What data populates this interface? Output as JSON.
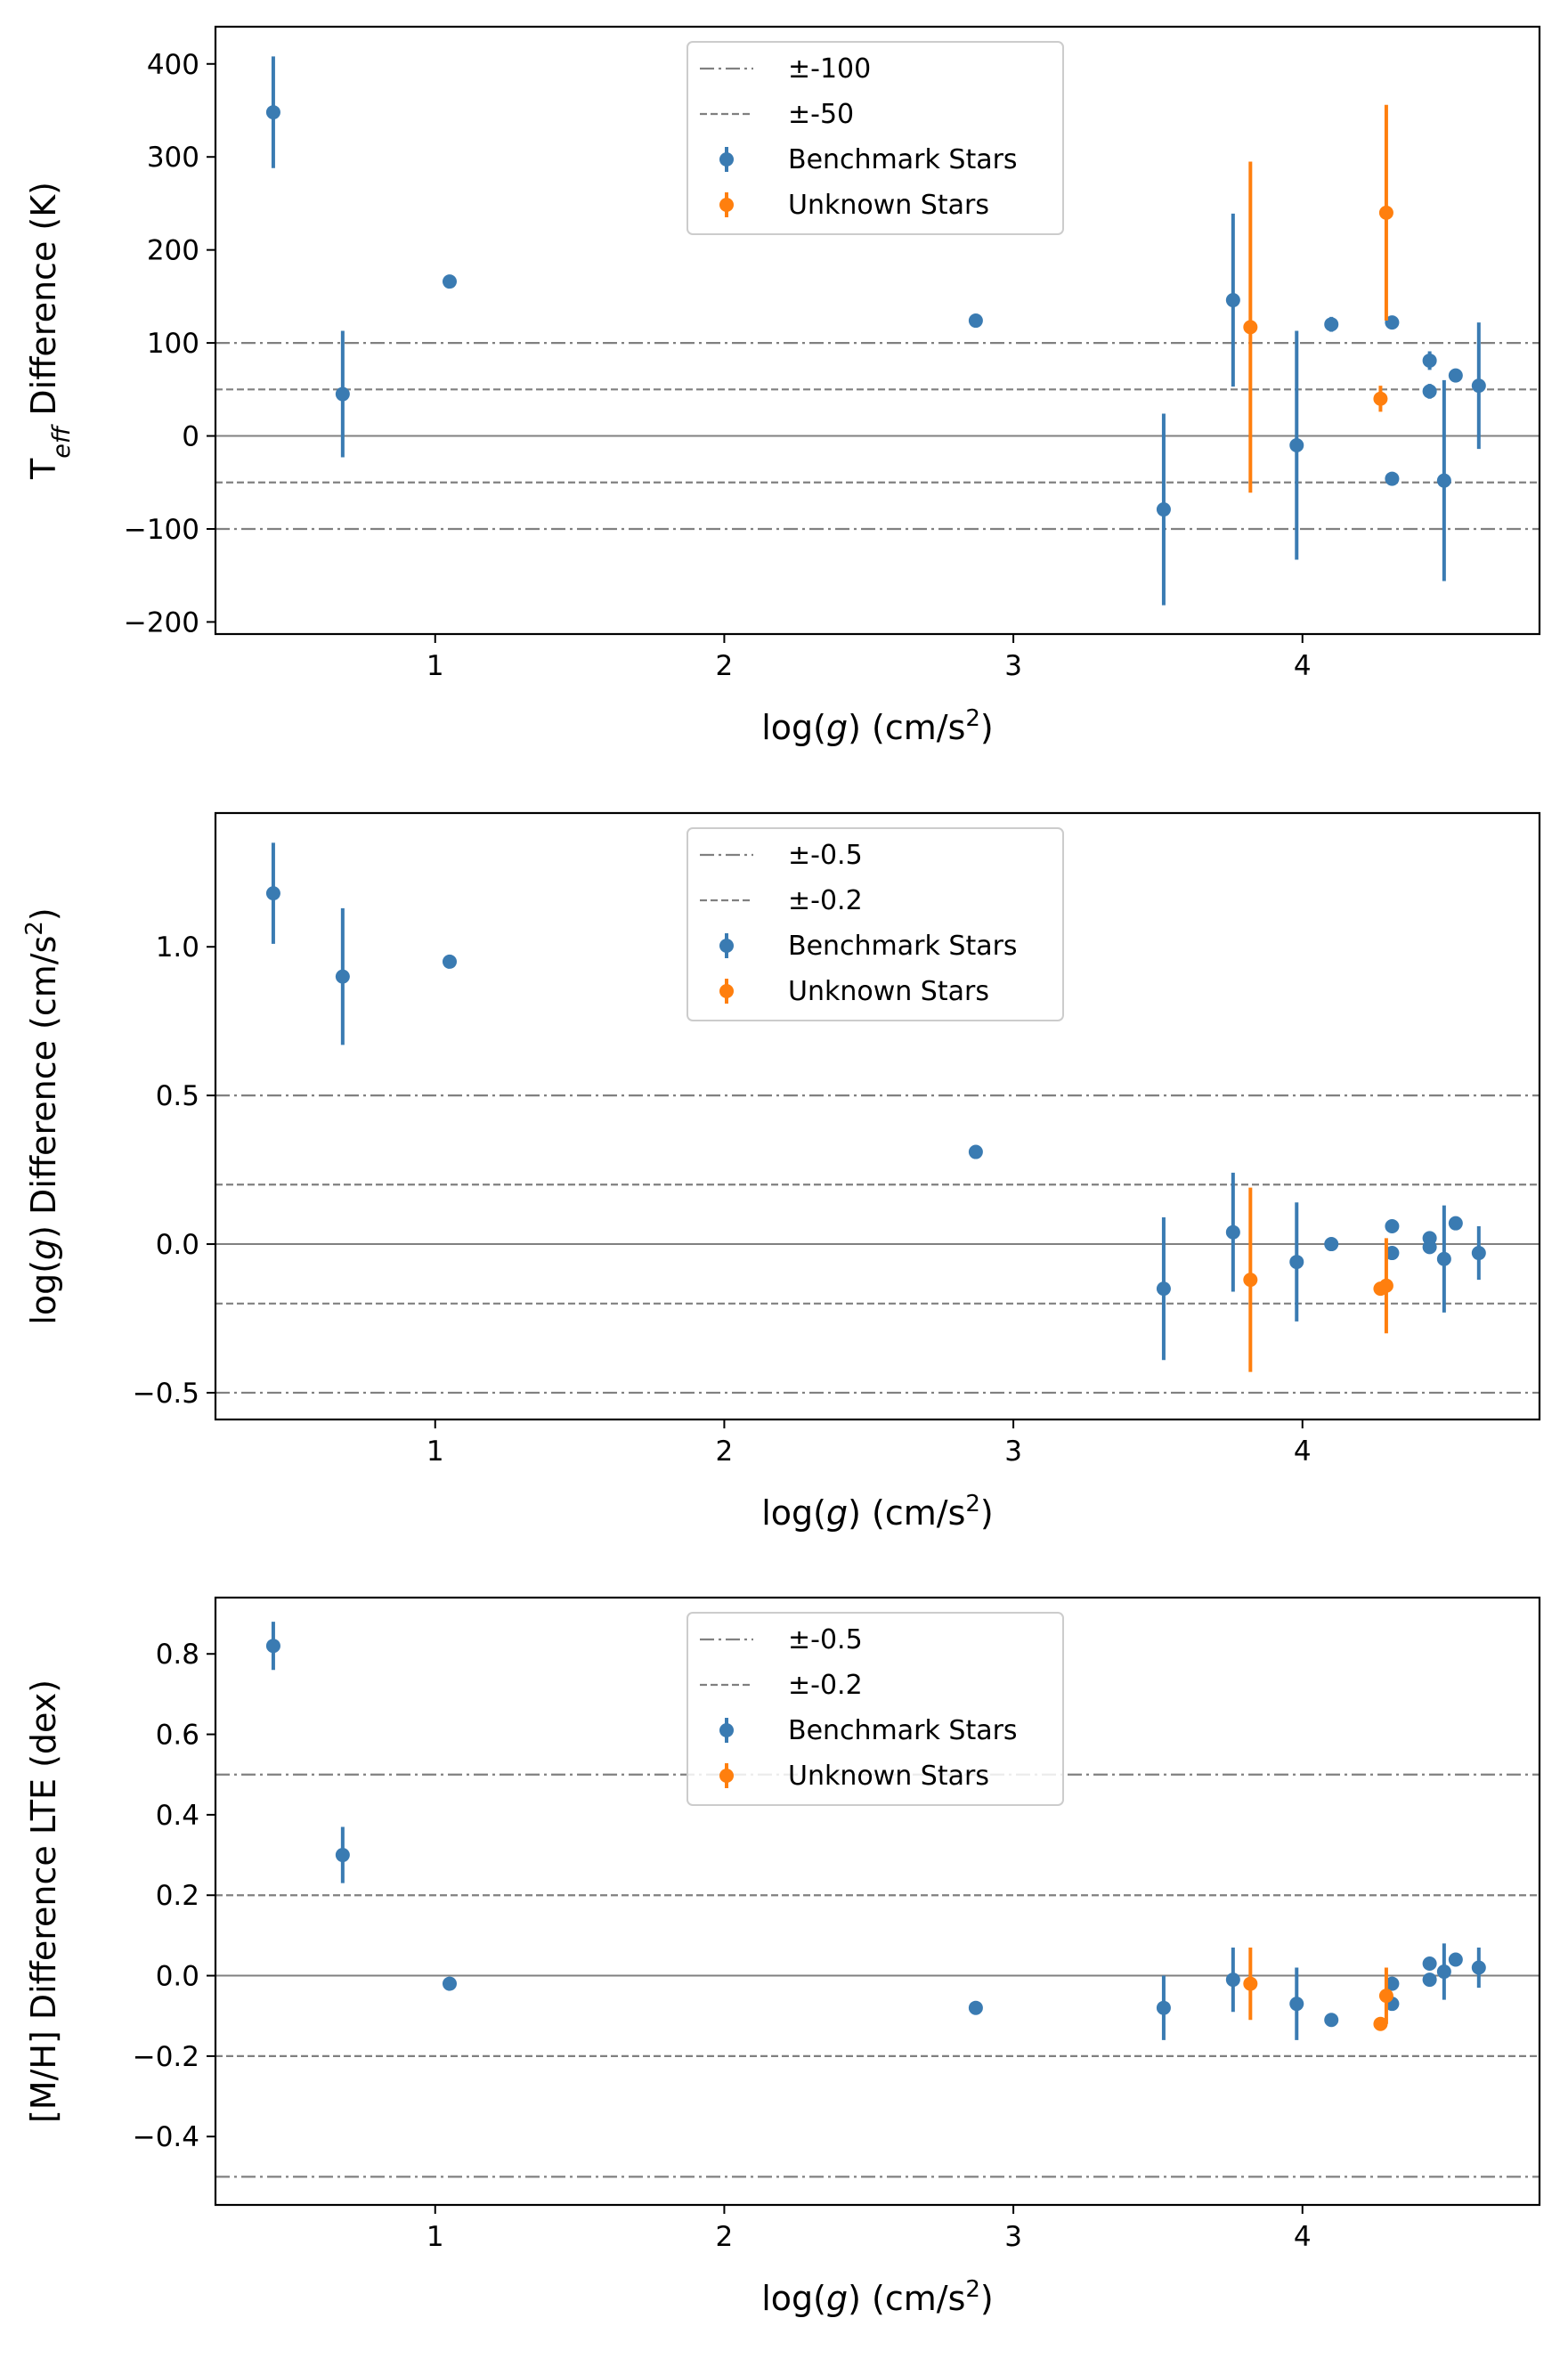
{
  "colors": {
    "benchmark": "#3a7bb2",
    "unknown": "#ff7f0e",
    "reference": "#808080",
    "axes": "#000000"
  },
  "chart_data": [
    {
      "type": "scatter",
      "error_bars": true,
      "xlabel": "log(g) (cm/s²)",
      "xlabel_parts": [
        "log(",
        "g",
        ") (cm/s",
        "2",
        ")"
      ],
      "ylabel": "Teff Difference (K)",
      "ylabel_parts": [
        "T",
        "eff",
        " Difference (K)"
      ],
      "xlim": [
        0.24,
        4.82
      ],
      "ylim": [
        -213,
        440
      ],
      "xticks": [
        1,
        2,
        3,
        4
      ],
      "xtick_labels": [
        "1",
        "2",
        "3",
        "4"
      ],
      "yticks": [
        400,
        300,
        200,
        100,
        0,
        -100,
        -200
      ],
      "ytick_labels": [
        "400",
        "300",
        "200",
        "100",
        "0",
        "−100",
        "−200"
      ],
      "zero_line": true,
      "reference_lines": [
        {
          "label": "±-100",
          "style": "dashdot",
          "values": [
            100,
            -100
          ]
        },
        {
          "label": "±-50",
          "style": "dashed",
          "values": [
            50,
            -50
          ]
        }
      ],
      "legend_position": "upper center",
      "series": [
        {
          "name": "Benchmark Stars",
          "points": [
            {
              "x": 0.44,
              "y": 348,
              "err": 60
            },
            {
              "x": 0.68,
              "y": 45,
              "err": 68
            },
            {
              "x": 1.05,
              "y": 166,
              "err": 0
            },
            {
              "x": 2.87,
              "y": 124,
              "err": 0
            },
            {
              "x": 3.52,
              "y": -79,
              "err": 103
            },
            {
              "x": 3.76,
              "y": 146,
              "err": 93
            },
            {
              "x": 3.98,
              "y": -10,
              "err": 123
            },
            {
              "x": 4.1,
              "y": 120,
              "err": 8
            },
            {
              "x": 4.31,
              "y": 122,
              "err": 0
            },
            {
              "x": 4.31,
              "y": -46,
              "err": 0
            },
            {
              "x": 4.44,
              "y": 81,
              "err": 10
            },
            {
              "x": 4.44,
              "y": 48,
              "err": 8
            },
            {
              "x": 4.49,
              "y": -48,
              "err": 108
            },
            {
              "x": 4.53,
              "y": 65,
              "err": 0
            },
            {
              "x": 4.61,
              "y": 54,
              "err": 68
            }
          ]
        },
        {
          "name": "Unknown Stars",
          "points": [
            {
              "x": 3.82,
              "y": 117,
              "err": 178
            },
            {
              "x": 4.27,
              "y": 40,
              "err": 14
            },
            {
              "x": 4.29,
              "y": 240,
              "err": 116
            }
          ]
        }
      ]
    },
    {
      "type": "scatter",
      "error_bars": true,
      "xlabel": "log(g) (cm/s²)",
      "xlabel_parts": [
        "log(",
        "g",
        ") (cm/s",
        "2",
        ")"
      ],
      "ylabel": "log(g) Difference (cm/s²)",
      "ylabel_parts": [
        "log(",
        "g",
        ") Difference (cm/s",
        "2",
        ")"
      ],
      "xlim": [
        0.24,
        4.82
      ],
      "ylim": [
        -0.59,
        1.45
      ],
      "xticks": [
        1,
        2,
        3,
        4
      ],
      "xtick_labels": [
        "1",
        "2",
        "3",
        "4"
      ],
      "yticks": [
        1.0,
        0.5,
        0.0,
        -0.5
      ],
      "ytick_labels": [
        "1.0",
        "0.5",
        "0.0",
        "−0.5"
      ],
      "zero_line": true,
      "reference_lines": [
        {
          "label": "±-0.5",
          "style": "dashdot",
          "values": [
            0.5,
            -0.5
          ]
        },
        {
          "label": "±-0.2",
          "style": "dashed",
          "values": [
            0.2,
            -0.2
          ]
        }
      ],
      "legend_position": "upper center",
      "series": [
        {
          "name": "Benchmark Stars",
          "points": [
            {
              "x": 0.44,
              "y": 1.18,
              "err": 0.17
            },
            {
              "x": 0.68,
              "y": 0.9,
              "err": 0.23
            },
            {
              "x": 1.05,
              "y": 0.95,
              "err": 0
            },
            {
              "x": 2.87,
              "y": 0.31,
              "err": 0
            },
            {
              "x": 3.52,
              "y": -0.15,
              "err": 0.24
            },
            {
              "x": 3.76,
              "y": 0.04,
              "err": 0.2
            },
            {
              "x": 3.98,
              "y": -0.06,
              "err": 0.2
            },
            {
              "x": 4.1,
              "y": 0.0,
              "err": 0
            },
            {
              "x": 4.31,
              "y": 0.06,
              "err": 0
            },
            {
              "x": 4.31,
              "y": -0.03,
              "err": 0
            },
            {
              "x": 4.44,
              "y": 0.02,
              "err": 0
            },
            {
              "x": 4.44,
              "y": -0.01,
              "err": 0
            },
            {
              "x": 4.49,
              "y": -0.05,
              "err": 0.18
            },
            {
              "x": 4.53,
              "y": 0.07,
              "err": 0
            },
            {
              "x": 4.61,
              "y": -0.03,
              "err": 0.09
            }
          ]
        },
        {
          "name": "Unknown Stars",
          "points": [
            {
              "x": 3.82,
              "y": -0.12,
              "err": 0.31
            },
            {
              "x": 4.27,
              "y": -0.15,
              "err": 0
            },
            {
              "x": 4.29,
              "y": -0.14,
              "err": 0.16
            }
          ]
        }
      ]
    },
    {
      "type": "scatter",
      "error_bars": true,
      "xlabel": "log(g) (cm/s²)",
      "xlabel_parts": [
        "log(",
        "g",
        ") (cm/s",
        "2",
        ")"
      ],
      "ylabel": "[M/H] Difference LTE (dex)",
      "ylabel_parts": [
        "[M/H] Difference LTE (dex)"
      ],
      "xlim": [
        0.24,
        4.82
      ],
      "ylim": [
        -0.57,
        0.94
      ],
      "xticks": [
        1,
        2,
        3,
        4
      ],
      "xtick_labels": [
        "1",
        "2",
        "3",
        "4"
      ],
      "yticks": [
        0.8,
        0.6,
        0.4,
        0.2,
        0.0,
        -0.2,
        -0.4
      ],
      "ytick_labels": [
        "0.8",
        "0.6",
        "0.4",
        "0.2",
        "0.0",
        "−0.2",
        "−0.4"
      ],
      "zero_line": true,
      "reference_lines": [
        {
          "label": "±-0.5",
          "style": "dashdot",
          "values": [
            0.5,
            -0.5
          ]
        },
        {
          "label": "±-0.2",
          "style": "dashed",
          "values": [
            0.2,
            -0.2
          ]
        }
      ],
      "legend_position": "upper center",
      "series": [
        {
          "name": "Benchmark Stars",
          "points": [
            {
              "x": 0.44,
              "y": 0.82,
              "err": 0.06
            },
            {
              "x": 0.68,
              "y": 0.3,
              "err": 0.07
            },
            {
              "x": 1.05,
              "y": -0.02,
              "err": 0
            },
            {
              "x": 2.87,
              "y": -0.08,
              "err": 0
            },
            {
              "x": 3.52,
              "y": -0.08,
              "err": 0.08
            },
            {
              "x": 3.76,
              "y": -0.01,
              "err": 0.08
            },
            {
              "x": 3.98,
              "y": -0.07,
              "err": 0.09
            },
            {
              "x": 4.1,
              "y": -0.11,
              "err": 0
            },
            {
              "x": 4.31,
              "y": -0.02,
              "err": 0
            },
            {
              "x": 4.31,
              "y": -0.07,
              "err": 0
            },
            {
              "x": 4.44,
              "y": 0.03,
              "err": 0
            },
            {
              "x": 4.44,
              "y": -0.01,
              "err": 0
            },
            {
              "x": 4.49,
              "y": 0.01,
              "err": 0.07
            },
            {
              "x": 4.53,
              "y": 0.04,
              "err": 0
            },
            {
              "x": 4.61,
              "y": 0.02,
              "err": 0.05
            }
          ]
        },
        {
          "name": "Unknown Stars",
          "points": [
            {
              "x": 3.82,
              "y": -0.02,
              "err": 0.09
            },
            {
              "x": 4.27,
              "y": -0.12,
              "err": 0
            },
            {
              "x": 4.29,
              "y": -0.05,
              "err": 0.07
            }
          ]
        }
      ]
    }
  ]
}
